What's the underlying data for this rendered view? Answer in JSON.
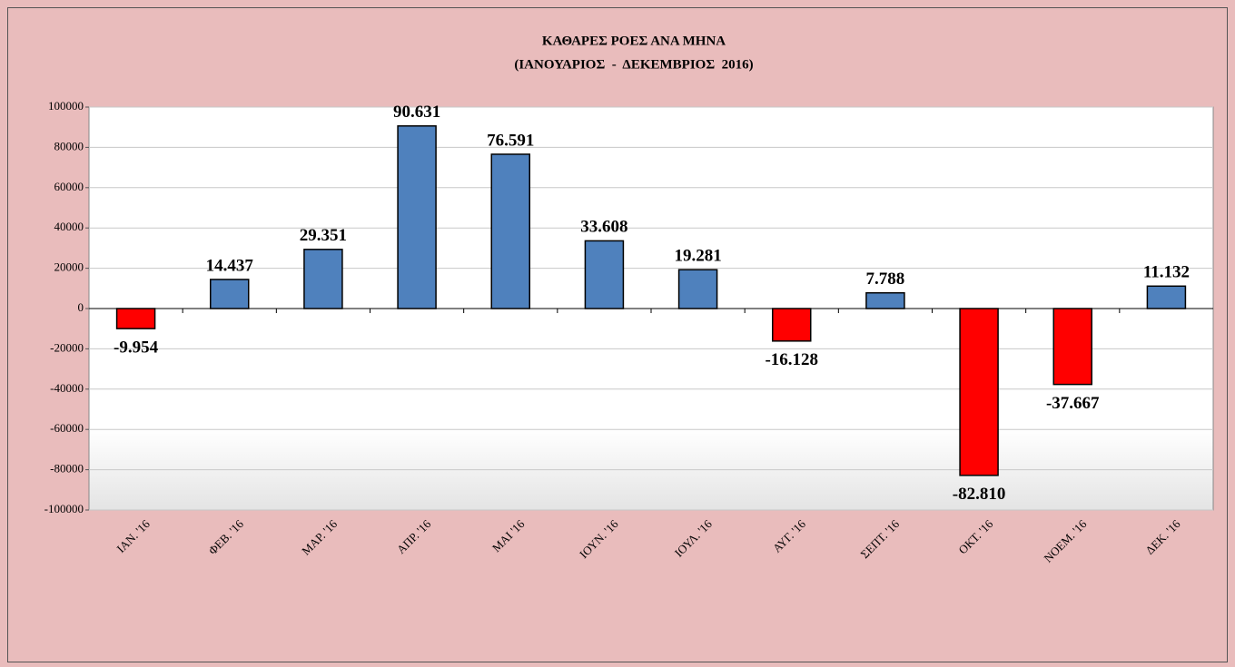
{
  "chart_data": {
    "type": "bar",
    "title": "ΚΑΘΑΡΕΣ ΡΟΕΣ ΑΝΑ ΜΗΝΑ",
    "subtitle": "(ΙΑΝΟΥΑΡΙΟΣ  -  ΔΕΚΕΜΒΡΙΟΣ  2016)",
    "categories": [
      "ΙΑΝ. '16",
      "ΦΕΒ. '16",
      "ΜΑΡ. '16",
      "ΑΠΡ. '16",
      "ΜΑΙ '16",
      "ΙΟΥΝ. '16",
      "ΙΟΥΛ. '16",
      "ΑΥΓ. '16",
      "ΣΕΠΤ. '16",
      "ΟΚΤ. '16",
      "ΝΟΕΜ. '16",
      "ΔΕΚ. '16"
    ],
    "values": [
      -9954,
      14437,
      29351,
      90631,
      76591,
      33608,
      19281,
      -16128,
      7788,
      -82810,
      -37667,
      11132
    ],
    "value_labels": [
      "-9.954",
      "14.437",
      "29.351",
      "90.631",
      "76.591",
      "33.608",
      "19.281",
      "-16.128",
      "7.788",
      "-82.810",
      "-37.667",
      "11.132"
    ],
    "colors": [
      "#ff0000",
      "#4f81bd",
      "#4f81bd",
      "#4f81bd",
      "#4f81bd",
      "#4f81bd",
      "#4f81bd",
      "#ff0000",
      "#4f81bd",
      "#ff0000",
      "#ff0000",
      "#4f81bd"
    ],
    "ylim": [
      -100000,
      100000
    ],
    "yticks": [
      -100000,
      -80000,
      -60000,
      -40000,
      -20000,
      0,
      20000,
      40000,
      60000,
      80000,
      100000
    ],
    "grid": true
  }
}
